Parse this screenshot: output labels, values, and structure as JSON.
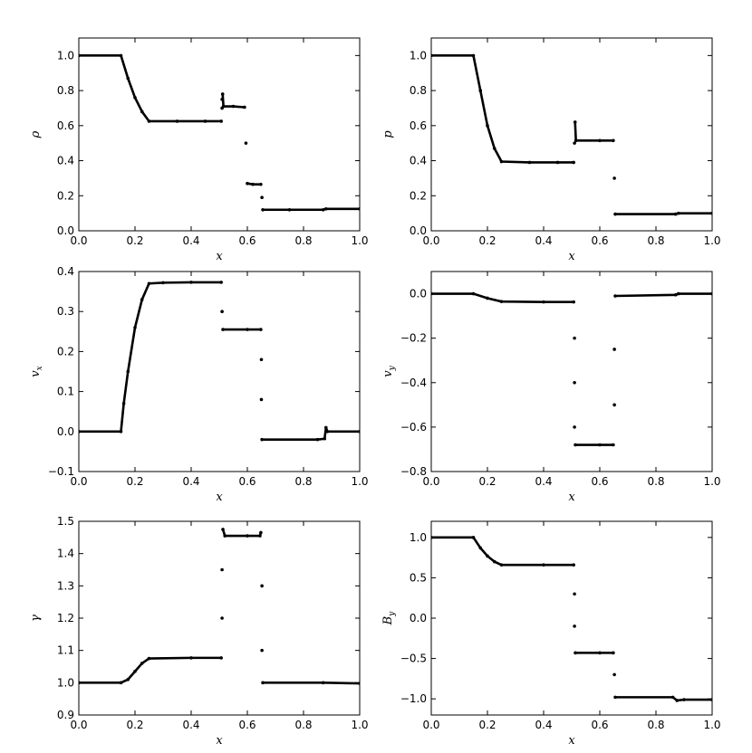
{
  "chart_data": [
    {
      "type": "line",
      "xlabel": "x",
      "ylabel": "ρ",
      "color": "#000000",
      "xlim": [
        0,
        1
      ],
      "ylim": [
        0,
        1.1
      ],
      "xticks": [
        {
          "value": 0,
          "label": "0.0"
        },
        0.2,
        0.4,
        0.6,
        0.8,
        {
          "value": 1,
          "label": "1.0"
        }
      ],
      "yticks": [
        {
          "value": 0,
          "label": "0.0"
        },
        0.2,
        0.4,
        0.6,
        0.8,
        {
          "value": 1,
          "label": "1.0"
        }
      ],
      "x": [
        0,
        0.15,
        0.175,
        0.2,
        0.225,
        0.25,
        0.35,
        0.45,
        0.507,
        0.507,
        0.51,
        0.51,
        0.51,
        0.51,
        0.512,
        0.515,
        0.55,
        0.59,
        0.59,
        0.595,
        0.595,
        0.6,
        0.62,
        0.648,
        0.648,
        0.652,
        0.652,
        0.655,
        0.75,
        0.87,
        0.88,
        1.0
      ],
      "y": [
        1,
        1,
        0.87,
        0.76,
        0.68,
        0.625,
        0.625,
        0.625,
        0.625,
        null,
        0.7,
        null,
        0.75,
        null,
        0.78,
        0.71,
        0.71,
        0.705,
        null,
        0.5,
        null,
        0.27,
        0.265,
        0.265,
        null,
        0.19,
        null,
        0.12,
        0.12,
        0.12,
        0.125,
        0.125
      ]
    },
    {
      "type": "line",
      "xlabel": "x",
      "ylabel": "p",
      "color": "#000000",
      "xlim": [
        0,
        1
      ],
      "ylim": [
        0,
        1.1
      ],
      "xticks": [
        {
          "value": 0,
          "label": "0.0"
        },
        0.2,
        0.4,
        0.6,
        0.8,
        {
          "value": 1,
          "label": "1.0"
        }
      ],
      "yticks": [
        {
          "value": 0,
          "label": "0.0"
        },
        0.2,
        0.4,
        0.6,
        0.8,
        {
          "value": 1,
          "label": "1.0"
        }
      ],
      "x": [
        0,
        0.15,
        0.175,
        0.2,
        0.225,
        0.25,
        0.35,
        0.45,
        0.507,
        0.507,
        0.51,
        0.51,
        0.512,
        0.515,
        0.6,
        0.648,
        0.648,
        0.652,
        0.652,
        0.655,
        0.87,
        0.88,
        1.0
      ],
      "y": [
        1,
        1,
        0.8,
        0.6,
        0.47,
        0.395,
        0.39,
        0.39,
        0.39,
        null,
        0.5,
        null,
        0.62,
        0.515,
        0.515,
        0.515,
        null,
        0.3,
        null,
        0.095,
        0.095,
        0.1,
        0.1
      ]
    },
    {
      "type": "line",
      "xlabel": "x",
      "ylabel": "v",
      "ylabel_sub": "x",
      "color": "#000000",
      "xlim": [
        0,
        1
      ],
      "ylim": [
        -0.1,
        0.4
      ],
      "xticks": [
        {
          "value": 0,
          "label": "0.0"
        },
        0.2,
        0.4,
        0.6,
        0.8,
        {
          "value": 1,
          "label": "1.0"
        }
      ],
      "yticks": [
        {
          "value": -0.1,
          "label": "−0.1"
        },
        {
          "value": 0,
          "label": "0.0"
        },
        0.1,
        0.2,
        0.3,
        0.4
      ],
      "x": [
        0,
        0.15,
        0.16,
        0.175,
        0.2,
        0.225,
        0.25,
        0.3,
        0.4,
        0.507,
        0.507,
        0.51,
        0.51,
        0.513,
        0.6,
        0.648,
        0.648,
        0.65,
        0.65,
        0.65,
        0.65,
        0.652,
        0.85,
        0.875,
        0.88,
        0.885,
        1.0
      ],
      "y": [
        0,
        0,
        0.07,
        0.15,
        0.26,
        0.33,
        0.37,
        0.372,
        0.373,
        0.373,
        null,
        0.3,
        null,
        0.255,
        0.255,
        0.255,
        null,
        0.18,
        null,
        0.08,
        null,
        -0.02,
        -0.02,
        -0.018,
        0.01,
        0,
        0
      ]
    },
    {
      "type": "line",
      "xlabel": "x",
      "ylabel": "v",
      "ylabel_sub": "y",
      "color": "#000000",
      "xlim": [
        0,
        1
      ],
      "ylim": [
        -0.8,
        0.1
      ],
      "xticks": [
        {
          "value": 0,
          "label": "0.0"
        },
        0.2,
        0.4,
        0.6,
        0.8,
        {
          "value": 1,
          "label": "1.0"
        }
      ],
      "yticks": [
        {
          "value": -0.8,
          "label": "−0.8"
        },
        {
          "value": -0.6,
          "label": "−0.6"
        },
        {
          "value": -0.4,
          "label": "−0.4"
        },
        {
          "value": -0.2,
          "label": "−0.2"
        },
        {
          "value": 0,
          "label": "0.0"
        }
      ],
      "x": [
        0,
        0.15,
        0.2,
        0.25,
        0.4,
        0.507,
        0.507,
        0.51,
        0.51,
        0.51,
        0.51,
        0.51,
        0.51,
        0.513,
        0.6,
        0.648,
        0.648,
        0.652,
        0.652,
        0.652,
        0.652,
        0.655,
        0.87,
        0.88,
        1.0
      ],
      "y": [
        0,
        0,
        -0.02,
        -0.035,
        -0.037,
        -0.037,
        null,
        -0.2,
        null,
        -0.4,
        null,
        -0.6,
        null,
        -0.68,
        -0.68,
        -0.68,
        null,
        -0.5,
        null,
        -0.25,
        null,
        -0.01,
        -0.005,
        0,
        0
      ]
    },
    {
      "type": "line",
      "xlabel": "x",
      "ylabel": "γ",
      "color": "#000000",
      "xlim": [
        0,
        1
      ],
      "ylim": [
        0.9,
        1.5
      ],
      "xticks": [
        {
          "value": 0,
          "label": "0.0"
        },
        0.2,
        0.4,
        0.6,
        0.8,
        {
          "value": 1,
          "label": "1.0"
        }
      ],
      "yticks": [
        0.9,
        {
          "value": 1,
          "label": "1.0"
        },
        1.1,
        1.2,
        1.3,
        1.4,
        1.5
      ],
      "x": [
        0,
        0.15,
        0.175,
        0.2,
        0.225,
        0.25,
        0.4,
        0.507,
        0.507,
        0.51,
        0.51,
        0.51,
        0.51,
        0.513,
        0.52,
        0.6,
        0.645,
        0.648,
        0.648,
        0.652,
        0.652,
        0.652,
        0.652,
        0.655,
        0.87,
        1.0
      ],
      "y": [
        1,
        1,
        1.01,
        1.035,
        1.06,
        1.075,
        1.077,
        1.077,
        null,
        1.2,
        null,
        1.35,
        null,
        1.475,
        1.455,
        1.455,
        1.455,
        1.465,
        null,
        1.3,
        null,
        1.1,
        null,
        1,
        1,
        0.998
      ]
    },
    {
      "type": "line",
      "xlabel": "x",
      "ylabel": "B",
      "ylabel_sub": "y",
      "color": "#000000",
      "xlim": [
        0,
        1
      ],
      "ylim": [
        -1.2,
        1.2
      ],
      "xticks": [
        {
          "value": 0,
          "label": "0.0"
        },
        0.2,
        0.4,
        0.6,
        0.8,
        {
          "value": 1,
          "label": "1.0"
        }
      ],
      "yticks": [
        {
          "value": -1,
          "label": "−1.0"
        },
        {
          "value": -0.5,
          "label": "−0.5"
        },
        {
          "value": 0,
          "label": "0.0"
        },
        0.5,
        {
          "value": 1,
          "label": "1.0"
        }
      ],
      "x": [
        0,
        0.15,
        0.175,
        0.2,
        0.225,
        0.25,
        0.4,
        0.507,
        0.507,
        0.51,
        0.51,
        0.51,
        0.51,
        0.513,
        0.6,
        0.648,
        0.648,
        0.652,
        0.652,
        0.655,
        0.86,
        0.875,
        0.9,
        1.0
      ],
      "y": [
        1,
        1,
        0.87,
        0.77,
        0.7,
        0.66,
        0.66,
        0.66,
        null,
        0.3,
        null,
        -0.1,
        null,
        -0.43,
        -0.43,
        -0.43,
        null,
        -0.7,
        null,
        -0.98,
        -0.98,
        -1.02,
        -1.01,
        -1.01
      ]
    }
  ]
}
